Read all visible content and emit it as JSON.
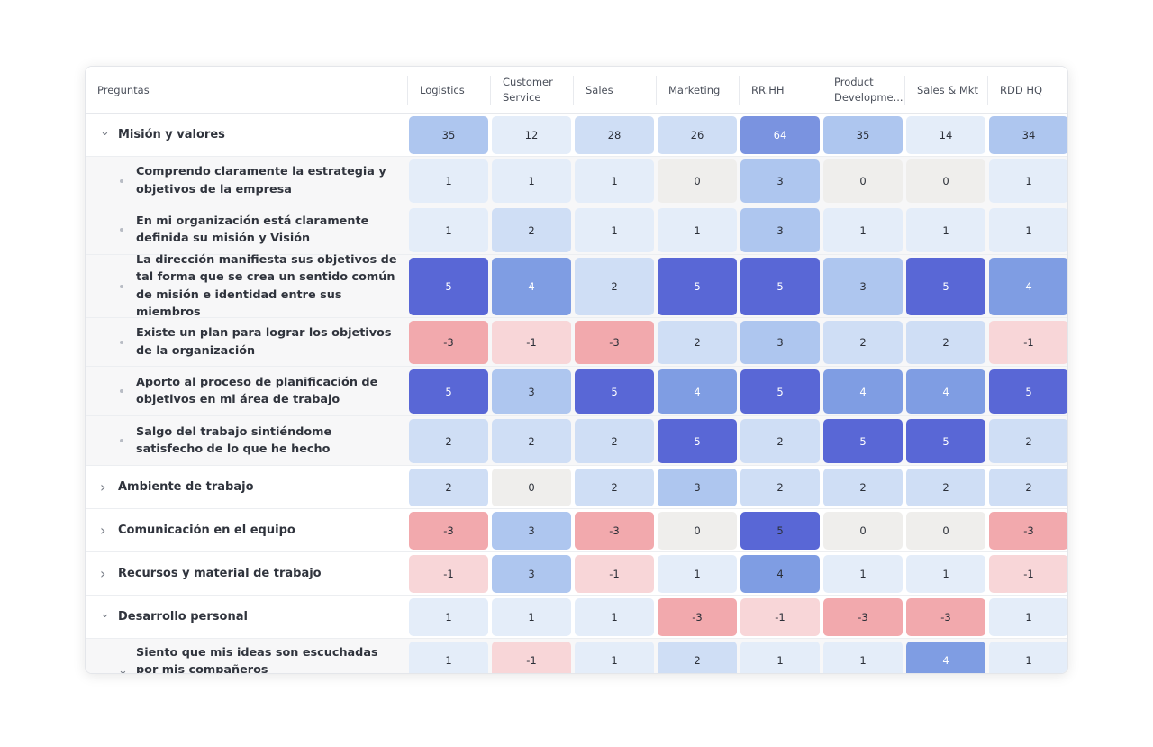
{
  "header": {
    "questions_label": "Preguntas",
    "columns": [
      "Logistics",
      "Customer Service",
      "Sales",
      "Marketing",
      "RR.HH",
      "Product Developme...",
      "Sales & Mkt",
      "RDD HQ"
    ]
  },
  "rows": [
    {
      "type": "group",
      "expanded": true,
      "label": "Misión y valores",
      "values": [
        "35",
        "12",
        "28",
        "26",
        "64",
        "35",
        "14",
        "34"
      ]
    },
    {
      "type": "item",
      "label": "Comprendo claramente la estrategia y objetivos de la empresa",
      "values": [
        "1",
        "1",
        "1",
        "0",
        "3",
        "0",
        "0",
        "1"
      ]
    },
    {
      "type": "item",
      "label": "En mi organización está claramente definida su misión y Visión",
      "values": [
        "1",
        "2",
        "1",
        "1",
        "3",
        "1",
        "1",
        "1"
      ]
    },
    {
      "type": "item",
      "label": "La dirección manifiesta sus objetivos de tal forma que se crea un sentido común de misión e identidad entre sus miembros",
      "values": [
        "5",
        "4",
        "2",
        "5",
        "5",
        "3",
        "5",
        "4"
      ]
    },
    {
      "type": "item",
      "label": "Existe un plan para lograr los objetivos de la organización",
      "values": [
        "-3",
        "-1",
        "-3",
        "2",
        "3",
        "2",
        "2",
        "-1"
      ]
    },
    {
      "type": "item",
      "label": "Aporto al proceso de planificación de objetivos en mi área de trabajo",
      "values": [
        "5",
        "3",
        "5",
        "4",
        "5",
        "4",
        "4",
        "5"
      ]
    },
    {
      "type": "item",
      "label": "Salgo del trabajo sintiéndome satisfecho de lo que he hecho",
      "values": [
        "2",
        "2",
        "2",
        "5",
        "2",
        "5",
        "5",
        "2"
      ]
    },
    {
      "type": "group",
      "expanded": false,
      "label": "Ambiente de trabajo",
      "values": [
        "2",
        "0",
        "2",
        "3",
        "2",
        "2",
        "2",
        "2"
      ]
    },
    {
      "type": "group",
      "expanded": false,
      "label": "Comunicación en el equipo",
      "values": [
        "-3",
        "3",
        "-3",
        "0",
        "5",
        "0",
        "0",
        "-3"
      ]
    },
    {
      "type": "group",
      "expanded": false,
      "label": "Recursos y material de trabajo",
      "values": [
        "-1",
        "3",
        "-1",
        "1",
        "4",
        "1",
        "1",
        "-1"
      ]
    },
    {
      "type": "group",
      "expanded": true,
      "label": "Desarrollo personal",
      "values": [
        "1",
        "1",
        "1",
        "-3",
        "-1",
        "-3",
        "-3",
        "1"
      ]
    },
    {
      "type": "item",
      "expanded": true,
      "label": "Siento que mis ideas son escuchadas por mis compañeros",
      "values": [
        "1",
        "-1",
        "1",
        "2",
        "1",
        "1",
        "4",
        "1"
      ]
    }
  ],
  "colors": {
    "neutral": "#efeeec",
    "pos1": "#e4edf9",
    "pos2": "#cfdef5",
    "pos3": "#aec6ef",
    "pos4": "#7f9de3",
    "pos5": "#5967d6",
    "neg1": "#f8d6d8",
    "neg3": "#f2a9ad",
    "group_pos_high": "#7a93e0"
  },
  "icons": {
    "expanded": "chevron-down-icon",
    "collapsed": "chevron-right-icon",
    "bullet": "bullet-dot-icon"
  }
}
